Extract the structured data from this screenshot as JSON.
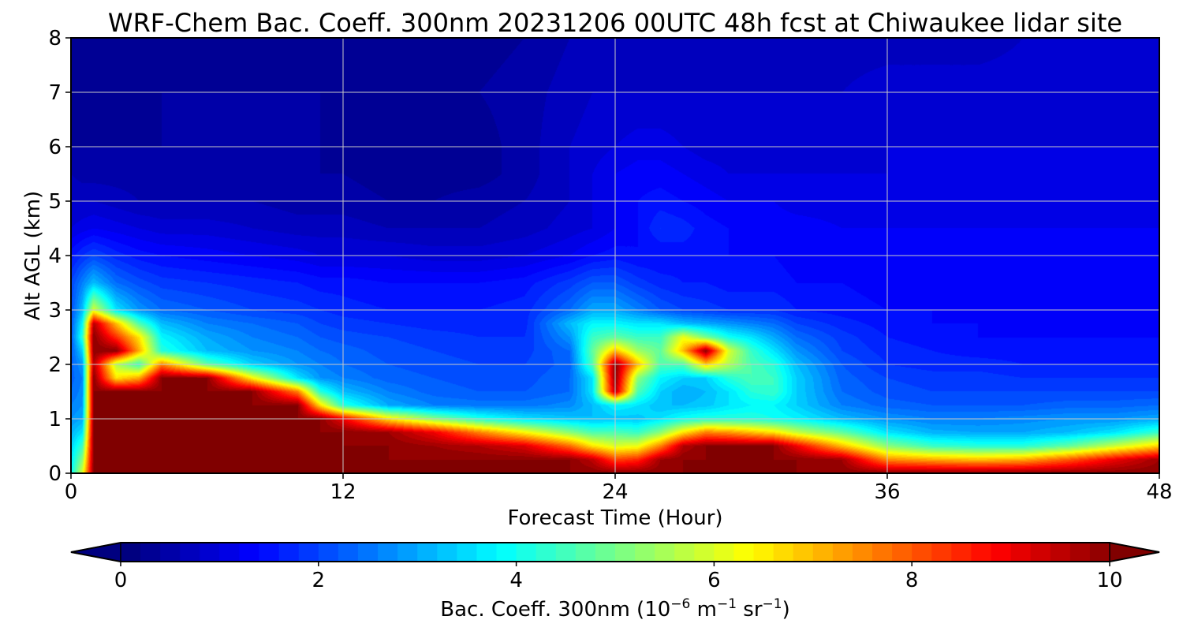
{
  "chart_data": {
    "type": "heatmap",
    "title": "WRF-Chem Bac. Coeff. 300nm  20231206 00UTC 48h fcst at Chiwaukee lidar site",
    "xlabel": "Forecast Time (Hour)",
    "ylabel": "Alt AGL (km)",
    "xlim": [
      0,
      48
    ],
    "ylim": [
      0,
      8
    ],
    "x_ticks": [
      "0",
      "12",
      "24",
      "36",
      "48"
    ],
    "y_ticks": [
      "0",
      "1",
      "2",
      "3",
      "4",
      "5",
      "6",
      "7",
      "8"
    ],
    "grid": true,
    "colorscale": "jet",
    "colorbar": {
      "label_main": "Bac. Coeff. 300nm  (10",
      "label_exp1": "−6",
      "label_mid": " m",
      "label_exp2": "−1",
      "label_mid2": " sr",
      "label_exp3": "−1",
      "label_end": ")",
      "range": [
        0,
        10
      ],
      "extend": "both",
      "ticks": [
        "0",
        "2",
        "4",
        "6",
        "8",
        "10"
      ]
    },
    "x": [
      0,
      0.5,
      1,
      2,
      3,
      4,
      6,
      8,
      10,
      11,
      12,
      14,
      16,
      18,
      20,
      22,
      23,
      24,
      25,
      26,
      27,
      28,
      29,
      30,
      31,
      32,
      34,
      36,
      38,
      40,
      42,
      44,
      46,
      48
    ],
    "y": [
      0,
      0.25,
      0.5,
      0.75,
      1,
      1.25,
      1.5,
      1.75,
      2,
      2.25,
      2.5,
      2.75,
      3,
      3.5,
      4,
      4.5,
      5,
      5.5,
      6,
      7,
      8
    ],
    "values": [
      [
        3.8,
        6.0,
        10.0,
        10.0,
        10.0,
        10.0,
        10.0,
        10.0,
        10.0,
        10.0,
        10.0,
        10.0,
        10.0,
        10.0,
        10.0,
        10.0,
        10.0,
        10.0,
        10.0,
        10.0,
        10.0,
        10.0,
        10.0,
        10.0,
        10.0,
        10.0,
        10.0,
        10.0,
        10.0,
        10.0,
        10.0,
        10.0,
        10.0,
        10.0
      ],
      [
        3.6,
        5.2,
        10.0,
        10.0,
        10.0,
        10.0,
        10.0,
        10.0,
        10.0,
        10.0,
        10.0,
        10.0,
        10.0,
        10.0,
        10.0,
        10.0,
        9.5,
        8.2,
        8.5,
        9.8,
        10.0,
        10.0,
        10.0,
        10.0,
        10.0,
        10.0,
        9.8,
        7.5,
        7.2,
        7.0,
        7.2,
        8.0,
        9.0,
        9.8
      ],
      [
        3.4,
        4.4,
        10.0,
        10.0,
        10.0,
        10.0,
        10.0,
        10.0,
        10.0,
        10.0,
        10.0,
        10.0,
        9.8,
        9.6,
        9.2,
        7.8,
        6.6,
        6.0,
        6.2,
        7.6,
        9.6,
        10.0,
        10.0,
        10.0,
        10.0,
        9.0,
        7.0,
        5.2,
        4.4,
        4.2,
        4.2,
        4.8,
        5.8,
        6.8
      ],
      [
        3.1,
        3.6,
        10.0,
        10.0,
        10.0,
        10.0,
        10.0,
        10.0,
        10.0,
        10.0,
        10.0,
        9.8,
        9.0,
        7.6,
        6.4,
        5.2,
        4.6,
        4.6,
        4.4,
        5.2,
        6.6,
        7.6,
        7.4,
        7.0,
        6.6,
        5.8,
        4.8,
        3.6,
        3.1,
        3.0,
        3.0,
        3.2,
        3.6,
        4.4
      ],
      [
        2.8,
        3.0,
        10.0,
        10.0,
        10.0,
        10.0,
        10.0,
        10.0,
        10.0,
        10.0,
        9.0,
        6.6,
        5.2,
        4.2,
        3.6,
        3.3,
        3.2,
        3.3,
        3.3,
        3.6,
        4.0,
        4.2,
        4.2,
        4.2,
        4.0,
        3.8,
        3.2,
        2.8,
        2.6,
        2.6,
        2.7,
        2.8,
        2.8,
        3.0
      ],
      [
        2.6,
        2.8,
        10.0,
        10.0,
        10.0,
        10.0,
        10.0,
        10.0,
        10.0,
        6.6,
        4.2,
        3.0,
        2.6,
        2.5,
        2.5,
        2.7,
        3.2,
        3.8,
        3.6,
        3.2,
        3.2,
        3.3,
        3.6,
        3.8,
        3.8,
        3.4,
        2.6,
        2.3,
        2.2,
        2.2,
        2.2,
        2.3,
        2.3,
        2.4
      ],
      [
        2.4,
        2.7,
        10.0,
        10.0,
        10.0,
        10.0,
        10.0,
        10.0,
        7.6,
        4.2,
        3.2,
        2.6,
        2.3,
        2.2,
        2.2,
        2.4,
        3.6,
        9.6,
        4.6,
        3.4,
        3.0,
        3.2,
        3.6,
        4.2,
        4.4,
        3.4,
        2.4,
        2.1,
        2.0,
        2.0,
        2.0,
        2.0,
        2.0,
        2.0
      ],
      [
        2.3,
        2.6,
        10.0,
        6.6,
        7.2,
        10.0,
        10.0,
        6.4,
        3.6,
        2.8,
        2.6,
        2.3,
        2.2,
        2.1,
        2.1,
        2.4,
        3.6,
        10.0,
        5.2,
        3.8,
        3.4,
        3.4,
        4.2,
        4.6,
        4.4,
        3.4,
        2.3,
        2.0,
        1.9,
        1.9,
        1.8,
        1.8,
        1.8,
        1.8
      ],
      [
        2.3,
        2.8,
        9.6,
        5.6,
        4.4,
        7.6,
        4.8,
        3.4,
        2.8,
        2.6,
        2.4,
        2.2,
        2.1,
        2.0,
        2.0,
        2.3,
        4.6,
        10.0,
        7.0,
        4.6,
        4.6,
        6.8,
        5.6,
        4.6,
        4.2,
        3.2,
        2.2,
        1.8,
        1.7,
        1.7,
        1.6,
        1.6,
        1.6,
        1.6
      ],
      [
        2.2,
        3.4,
        10.0,
        10.0,
        7.2,
        4.2,
        3.2,
        2.8,
        2.6,
        2.4,
        2.3,
        2.1,
        2.0,
        1.9,
        1.9,
        2.4,
        4.8,
        7.0,
        5.4,
        4.8,
        7.0,
        10.0,
        6.0,
        4.4,
        3.6,
        2.8,
        2.0,
        1.7,
        1.6,
        1.5,
        1.5,
        1.5,
        1.5,
        1.5
      ],
      [
        2.2,
        4.2,
        10.0,
        8.4,
        6.6,
        3.8,
        3.0,
        2.6,
        2.4,
        2.2,
        2.1,
        2.0,
        1.9,
        1.8,
        1.8,
        2.8,
        4.4,
        4.8,
        4.4,
        4.4,
        6.2,
        5.0,
        4.0,
        3.6,
        3.0,
        2.4,
        1.9,
        1.6,
        1.5,
        1.4,
        1.4,
        1.4,
        1.4,
        1.4
      ],
      [
        2.2,
        3.8,
        9.6,
        7.0,
        4.6,
        3.2,
        2.6,
        2.4,
        2.2,
        2.0,
        1.9,
        1.8,
        1.7,
        1.7,
        1.7,
        3.2,
        3.8,
        3.8,
        3.6,
        3.6,
        3.2,
        3.0,
        2.8,
        2.6,
        2.4,
        2.0,
        1.7,
        1.5,
        1.4,
        1.4,
        1.4,
        1.4,
        1.4,
        1.4
      ],
      [
        2.1,
        3.2,
        6.0,
        3.6,
        2.8,
        2.4,
        2.2,
        2.0,
        1.9,
        1.8,
        1.7,
        1.6,
        1.6,
        1.6,
        1.7,
        2.4,
        3.0,
        3.0,
        2.6,
        2.2,
        2.0,
        1.9,
        1.8,
        1.8,
        1.8,
        1.6,
        1.5,
        1.4,
        1.4,
        1.4,
        1.4,
        1.4,
        1.4,
        1.4
      ],
      [
        2.0,
        2.6,
        3.2,
        2.4,
        2.1,
        1.9,
        1.8,
        1.7,
        1.6,
        1.5,
        1.5,
        1.4,
        1.4,
        1.4,
        1.5,
        1.9,
        2.2,
        2.2,
        1.9,
        1.7,
        1.6,
        1.6,
        1.5,
        1.5,
        1.5,
        1.4,
        1.4,
        1.3,
        1.3,
        1.3,
        1.3,
        1.3,
        1.3,
        1.3
      ],
      [
        1.5,
        1.8,
        2.0,
        1.7,
        1.5,
        1.4,
        1.3,
        1.2,
        1.1,
        1.0,
        1.0,
        1.0,
        0.9,
        0.9,
        1.0,
        1.2,
        1.4,
        1.5,
        1.4,
        1.4,
        1.5,
        1.5,
        1.4,
        1.4,
        1.4,
        1.3,
        1.3,
        1.3,
        1.3,
        1.3,
        1.3,
        1.3,
        1.3,
        1.3
      ],
      [
        1.0,
        1.1,
        1.2,
        1.1,
        1.0,
        0.9,
        0.9,
        0.8,
        0.7,
        0.7,
        0.7,
        0.6,
        0.6,
        0.6,
        0.7,
        0.9,
        1.0,
        1.2,
        1.4,
        1.8,
        1.7,
        1.5,
        1.4,
        1.4,
        1.3,
        1.3,
        1.2,
        1.2,
        1.2,
        1.2,
        1.2,
        1.2,
        1.2,
        1.2
      ],
      [
        0.8,
        0.8,
        0.8,
        0.7,
        0.6,
        0.6,
        0.6,
        0.6,
        0.5,
        0.5,
        0.5,
        0.4,
        0.4,
        0.5,
        0.6,
        0.8,
        1.0,
        1.2,
        1.4,
        1.5,
        1.4,
        1.3,
        1.2,
        1.2,
        1.2,
        1.1,
        1.1,
        1.1,
        1.1,
        1.1,
        1.1,
        1.1,
        1.1,
        1.1
      ],
      [
        0.6,
        0.5,
        0.5,
        0.5,
        0.5,
        0.5,
        0.5,
        0.5,
        0.4,
        0.4,
        0.4,
        0.3,
        0.3,
        0.3,
        0.5,
        0.8,
        1.0,
        1.2,
        1.3,
        1.3,
        1.2,
        1.1,
        1.0,
        1.0,
        1.0,
        1.0,
        1.0,
        1.0,
        1.1,
        1.1,
        1.1,
        1.1,
        1.1,
        1.1
      ],
      [
        0.4,
        0.4,
        0.4,
        0.4,
        0.4,
        0.4,
        0.4,
        0.5,
        0.5,
        0.4,
        0.3,
        0.3,
        0.3,
        0.3,
        0.5,
        0.8,
        0.9,
        1.0,
        1.1,
        1.1,
        1.0,
        0.9,
        0.9,
        0.9,
        0.9,
        0.9,
        0.9,
        1.0,
        1.0,
        1.0,
        1.0,
        1.0,
        1.0,
        1.0
      ],
      [
        0.2,
        0.2,
        0.2,
        0.3,
        0.3,
        0.4,
        0.4,
        0.4,
        0.4,
        0.4,
        0.3,
        0.3,
        0.3,
        0.4,
        0.5,
        0.7,
        0.8,
        0.8,
        0.8,
        0.8,
        0.8,
        0.8,
        0.8,
        0.8,
        0.8,
        0.8,
        0.8,
        0.9,
        0.9,
        0.9,
        0.9,
        0.9,
        0.9,
        0.9
      ],
      [
        0.2,
        0.2,
        0.2,
        0.2,
        0.3,
        0.3,
        0.3,
        0.3,
        0.3,
        0.3,
        0.3,
        0.3,
        0.3,
        0.3,
        0.4,
        0.6,
        0.6,
        0.6,
        0.6,
        0.6,
        0.6,
        0.6,
        0.6,
        0.6,
        0.6,
        0.6,
        0.7,
        0.7,
        0.7,
        0.7,
        0.8,
        0.8,
        0.8,
        0.8
      ]
    ]
  }
}
